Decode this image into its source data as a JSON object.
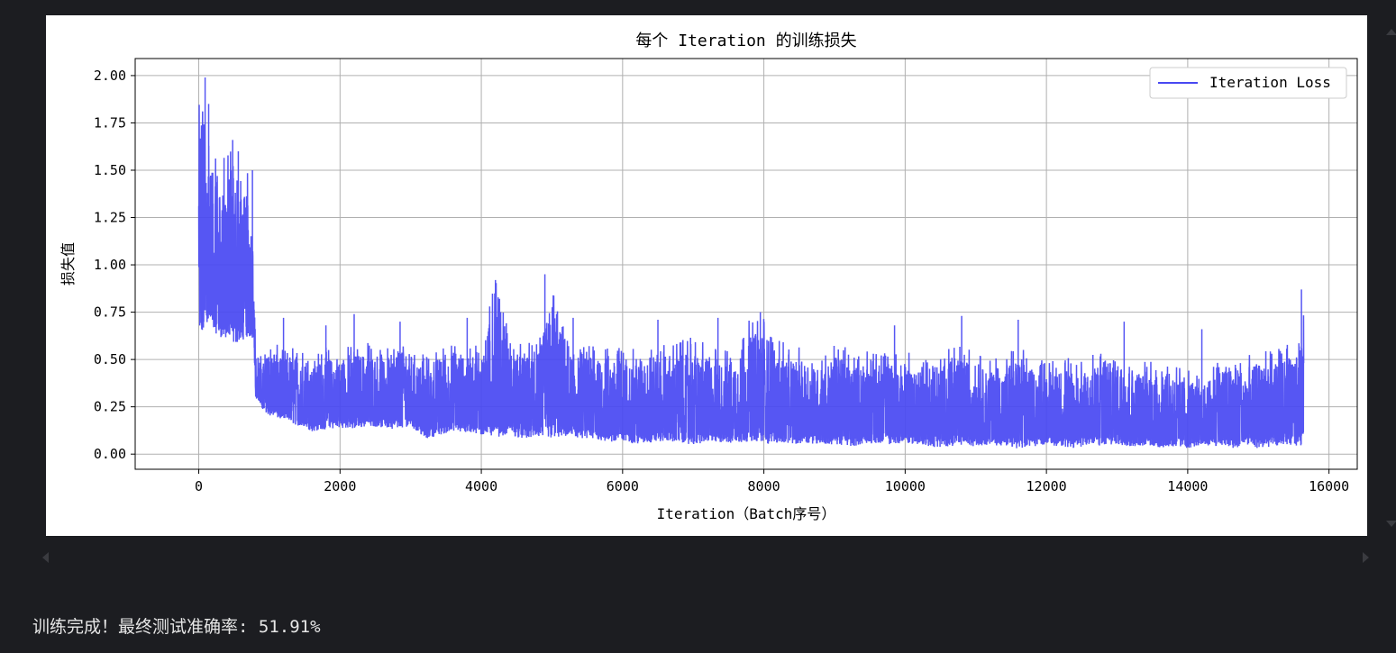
{
  "output_text": "训练完成！最终测试准确率: 51.91%",
  "chart_data": {
    "type": "line",
    "title": "每个 Iteration 的训练损失",
    "xlabel": "Iteration（Batch序号）",
    "ylabel": "损失值",
    "xlim": [
      -900,
      16400
    ],
    "ylim": [
      -0.08,
      2.09
    ],
    "xticks": [
      0,
      2000,
      4000,
      6000,
      8000,
      10000,
      12000,
      14000,
      16000
    ],
    "xtick_labels": [
      "0",
      "2000",
      "4000",
      "6000",
      "8000",
      "10000",
      "12000",
      "14000",
      "16000"
    ],
    "yticks": [
      0.0,
      0.25,
      0.5,
      0.75,
      1.0,
      1.25,
      1.5,
      1.75,
      2.0
    ],
    "ytick_labels": [
      "0.00",
      "0.25",
      "0.50",
      "0.75",
      "1.00",
      "1.25",
      "1.50",
      "1.75",
      "2.00"
    ],
    "grid": true,
    "legend_position": "upper-right",
    "series": [
      {
        "name": "Iteration Loss",
        "color": "#4848f2",
        "n_points": 15640,
        "envelope_x": [
          0,
          60,
          120,
          200,
          300,
          400,
          500,
          600,
          700,
          780,
          800,
          900,
          1000,
          1200,
          1400,
          1600,
          1800,
          2000,
          2200,
          2400,
          2600,
          2800,
          3000,
          3200,
          3400,
          3600,
          3800,
          4000,
          4200,
          4400,
          4600,
          4800,
          5000,
          5200,
          5400,
          5600,
          5800,
          6000,
          6200,
          6400,
          6600,
          6800,
          7000,
          7200,
          7400,
          7600,
          7800,
          8000,
          8200,
          8400,
          8600,
          8800,
          9000,
          9200,
          9400,
          9600,
          9800,
          10000,
          10200,
          10400,
          10600,
          10800,
          11000,
          11200,
          11400,
          11600,
          11800,
          12000,
          12200,
          12400,
          12600,
          12800,
          13000,
          13200,
          13400,
          13600,
          13800,
          14000,
          14200,
          14400,
          14600,
          14800,
          15000,
          15200,
          15400,
          15600,
          15640
        ],
        "envelope_upper": [
          1.84,
          2.0,
          1.85,
          1.6,
          1.5,
          1.66,
          1.55,
          1.5,
          1.5,
          1.2,
          0.55,
          0.52,
          0.6,
          0.56,
          0.58,
          0.52,
          0.58,
          0.56,
          0.6,
          0.6,
          0.55,
          0.62,
          0.6,
          0.52,
          0.58,
          0.6,
          0.58,
          0.6,
          0.92,
          0.62,
          0.6,
          0.58,
          0.95,
          0.62,
          0.6,
          0.58,
          0.56,
          0.58,
          0.55,
          0.57,
          0.58,
          0.6,
          0.62,
          0.58,
          0.56,
          0.6,
          0.72,
          0.75,
          0.6,
          0.58,
          0.56,
          0.52,
          0.6,
          0.56,
          0.54,
          0.55,
          0.55,
          0.55,
          0.5,
          0.5,
          0.56,
          0.58,
          0.55,
          0.5,
          0.52,
          0.58,
          0.52,
          0.5,
          0.52,
          0.5,
          0.52,
          0.55,
          0.58,
          0.52,
          0.5,
          0.48,
          0.48,
          0.45,
          0.4,
          0.5,
          0.55,
          0.52,
          0.55,
          0.55,
          0.58,
          0.6,
          0.87
        ],
        "envelope_lower": [
          0.55,
          0.62,
          0.7,
          0.65,
          0.62,
          0.6,
          0.58,
          0.6,
          0.62,
          0.6,
          0.3,
          0.24,
          0.2,
          0.18,
          0.15,
          0.12,
          0.13,
          0.14,
          0.13,
          0.15,
          0.14,
          0.13,
          0.15,
          0.08,
          0.1,
          0.12,
          0.11,
          0.1,
          0.09,
          0.1,
          0.08,
          0.09,
          0.08,
          0.09,
          0.07,
          0.08,
          0.06,
          0.07,
          0.05,
          0.06,
          0.07,
          0.06,
          0.05,
          0.06,
          0.06,
          0.05,
          0.07,
          0.05,
          0.06,
          0.05,
          0.06,
          0.05,
          0.05,
          0.04,
          0.05,
          0.06,
          0.05,
          0.06,
          0.05,
          0.03,
          0.04,
          0.05,
          0.04,
          0.05,
          0.04,
          0.03,
          0.04,
          0.05,
          0.04,
          0.03,
          0.05,
          0.04,
          0.05,
          0.04,
          0.04,
          0.03,
          0.04,
          0.03,
          0.05,
          0.04,
          0.03,
          0.04,
          0.03,
          0.04,
          0.05,
          0.04,
          0.08
        ],
        "spikes": [
          [
            90,
            1.99
          ],
          [
            140,
            1.85
          ],
          [
            480,
            1.66
          ],
          [
            560,
            1.6
          ],
          [
            760,
            1.5
          ],
          [
            1200,
            0.72
          ],
          [
            1800,
            0.68
          ],
          [
            2200,
            0.74
          ],
          [
            2850,
            0.7
          ],
          [
            3800,
            0.72
          ],
          [
            4200,
            0.92
          ],
          [
            4900,
            0.95
          ],
          [
            5300,
            0.72
          ],
          [
            6500,
            0.71
          ],
          [
            7350,
            0.72
          ],
          [
            7950,
            0.75
          ],
          [
            9850,
            0.68
          ],
          [
            10800,
            0.73
          ],
          [
            11600,
            0.71
          ],
          [
            13100,
            0.7
          ],
          [
            14200,
            0.66
          ],
          [
            15610,
            0.87
          ]
        ]
      }
    ]
  }
}
